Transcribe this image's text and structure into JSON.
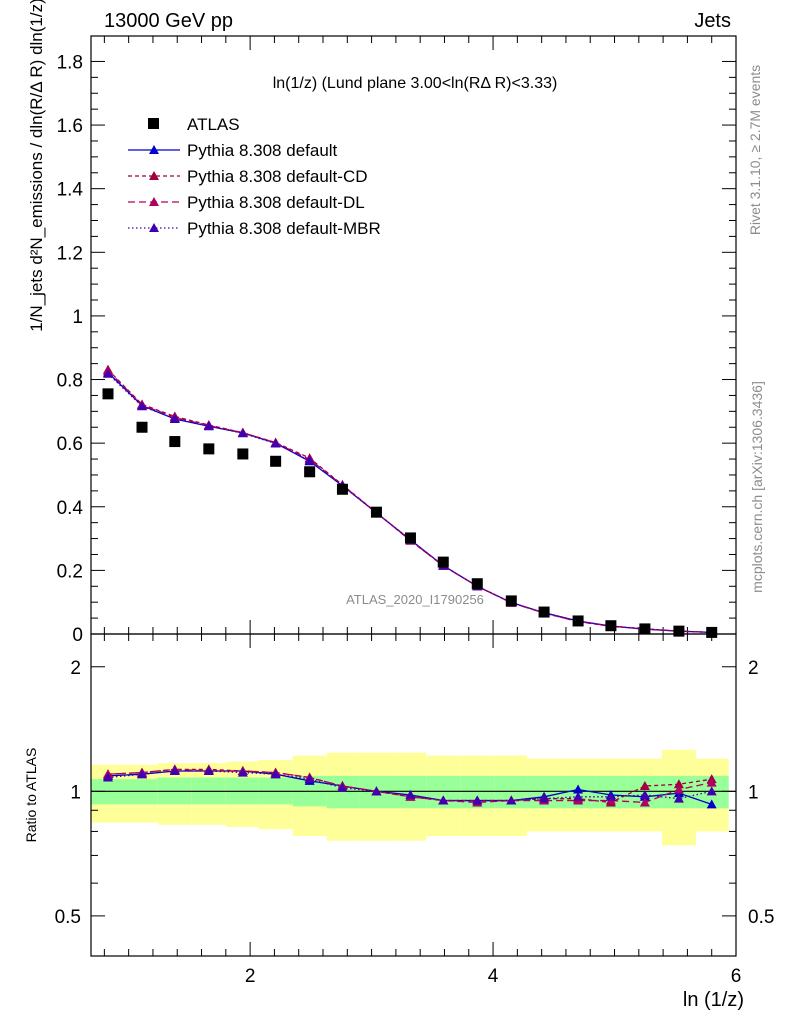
{
  "header": {
    "left": "13000 GeV pp",
    "right": "Jets"
  },
  "side_labels": {
    "rivet": "Rivet 3.1.10, ≥ 2.7M events",
    "mcplots": "mcplots.cern.ch [arXiv:1306.3436]"
  },
  "watermark": "ATLAS_2020_I1790256",
  "colors": {
    "data": "#000000",
    "default": "#0000cc",
    "cd": "#a00040",
    "dl": "#b00060",
    "mbr": "#4000b0",
    "band_inner": "#99ff99",
    "band_outer": "#ffff99"
  },
  "chart_data": [
    {
      "type": "scatter",
      "panel": "main",
      "title": "ln(1/z) (Lund plane 3.00<ln(RΔ R)<3.33)",
      "ylabel": "1/N_jets d²N_emissions / dln(R/Δ R) dln(1/z)",
      "xlabel": "",
      "xlim": [
        0.69,
        6.0
      ],
      "ylim": [
        0.0,
        1.88
      ],
      "x": [
        0.83,
        1.11,
        1.38,
        1.66,
        1.94,
        2.21,
        2.49,
        2.76,
        3.04,
        3.32,
        3.59,
        3.87,
        4.15,
        4.42,
        4.7,
        4.97,
        5.25,
        5.53,
        5.8
      ],
      "legend": [
        "ATLAS",
        "Pythia 8.308 default",
        "Pythia 8.308 default-CD",
        "Pythia 8.308 default-DL",
        "Pythia 8.308 default-MBR"
      ],
      "series": [
        {
          "name": "ATLAS",
          "style": "markers",
          "values": [
            0.755,
            0.65,
            0.605,
            0.582,
            0.566,
            0.543,
            0.51,
            0.455,
            0.383,
            0.302,
            0.226,
            0.158,
            0.104,
            0.069,
            0.041,
            0.026,
            0.016,
            0.009,
            0.005
          ]
        },
        {
          "name": "Pythia 8.308 default",
          "style": "solid",
          "values": [
            0.822,
            0.718,
            0.676,
            0.653,
            0.632,
            0.6,
            0.543,
            0.466,
            0.381,
            0.296,
            0.215,
            0.15,
            0.099,
            0.067,
            0.041,
            0.025,
            0.015,
            0.009,
            0.005
          ]
        },
        {
          "name": "Pythia 8.308 default-CD",
          "style": "dashed",
          "values": [
            0.831,
            0.722,
            0.684,
            0.657,
            0.633,
            0.602,
            0.553,
            0.469,
            0.382,
            0.293,
            0.215,
            0.15,
            0.099,
            0.066,
            0.039,
            0.024,
            0.016,
            0.009,
            0.005
          ]
        },
        {
          "name": "Pythia 8.308 default-DL",
          "style": "dashed",
          "values": [
            0.828,
            0.72,
            0.681,
            0.655,
            0.633,
            0.601,
            0.549,
            0.468,
            0.381,
            0.294,
            0.214,
            0.15,
            0.098,
            0.066,
            0.039,
            0.025,
            0.016,
            0.009,
            0.005
          ]
        },
        {
          "name": "Pythia 8.308 default-MBR",
          "style": "dotted",
          "values": [
            0.818,
            0.716,
            0.677,
            0.654,
            0.631,
            0.599,
            0.545,
            0.466,
            0.381,
            0.296,
            0.215,
            0.15,
            0.099,
            0.066,
            0.04,
            0.025,
            0.016,
            0.009,
            0.005
          ]
        }
      ],
      "yticks": [
        0,
        0.2,
        0.4,
        0.6,
        0.8,
        1,
        1.2,
        1.4,
        1.6,
        1.8
      ]
    },
    {
      "type": "line",
      "panel": "ratio",
      "ylabel": "Ratio to ATLAS",
      "xlabel": "ln (1/z)",
      "scale": "log",
      "xlim": [
        0.69,
        6.0
      ],
      "ylim": [
        0.4,
        2.4
      ],
      "x": [
        0.83,
        1.11,
        1.38,
        1.66,
        1.94,
        2.21,
        2.49,
        2.76,
        3.04,
        3.32,
        3.59,
        3.87,
        4.15,
        4.42,
        4.7,
        4.97,
        5.25,
        5.53,
        5.8
      ],
      "bin_edges": [
        0.69,
        0.97,
        1.24,
        1.52,
        1.8,
        2.07,
        2.35,
        2.63,
        2.9,
        3.18,
        3.45,
        3.73,
        4.01,
        4.28,
        4.56,
        4.84,
        5.11,
        5.39,
        5.67,
        5.94
      ],
      "band_inner": {
        "low": [
          0.93,
          0.93,
          0.93,
          0.93,
          0.93,
          0.93,
          0.92,
          0.91,
          0.91,
          0.91,
          0.91,
          0.91,
          0.91,
          0.91,
          0.91,
          0.91,
          0.91,
          0.91,
          0.91
        ],
        "high": [
          1.07,
          1.07,
          1.08,
          1.08,
          1.08,
          1.08,
          1.09,
          1.09,
          1.09,
          1.09,
          1.09,
          1.09,
          1.09,
          1.09,
          1.09,
          1.09,
          1.09,
          1.09,
          1.09
        ]
      },
      "band_outer": {
        "low": [
          0.84,
          0.84,
          0.83,
          0.83,
          0.82,
          0.81,
          0.78,
          0.76,
          0.76,
          0.76,
          0.78,
          0.78,
          0.78,
          0.8,
          0.8,
          0.8,
          0.8,
          0.74,
          0.8
        ],
        "high": [
          1.16,
          1.16,
          1.17,
          1.17,
          1.18,
          1.19,
          1.22,
          1.24,
          1.24,
          1.24,
          1.22,
          1.22,
          1.22,
          1.2,
          1.2,
          1.2,
          1.2,
          1.26,
          1.2
        ]
      },
      "series": [
        {
          "name": "Pythia 8.308 default",
          "style": "solid",
          "values": [
            1.09,
            1.1,
            1.12,
            1.12,
            1.12,
            1.1,
            1.06,
            1.03,
            1.0,
            0.98,
            0.95,
            0.95,
            0.95,
            0.97,
            1.01,
            0.98,
            0.97,
            0.99,
            0.93
          ]
        },
        {
          "name": "Pythia 8.308 default-CD",
          "style": "dashed",
          "values": [
            1.1,
            1.11,
            1.13,
            1.13,
            1.12,
            1.11,
            1.08,
            1.03,
            1.0,
            0.97,
            0.95,
            0.95,
            0.95,
            0.96,
            0.96,
            0.94,
            1.03,
            1.04,
            1.07
          ]
        },
        {
          "name": "Pythia 8.308 default-DL",
          "style": "dashed",
          "values": [
            1.1,
            1.11,
            1.13,
            1.12,
            1.12,
            1.11,
            1.08,
            1.03,
            1.0,
            0.97,
            0.95,
            0.94,
            0.95,
            0.95,
            0.95,
            0.95,
            0.94,
            1.01,
            1.05
          ]
        },
        {
          "name": "Pythia 8.308 default-MBR",
          "style": "dotted",
          "values": [
            1.08,
            1.1,
            1.12,
            1.12,
            1.11,
            1.1,
            1.07,
            1.02,
            1.0,
            0.98,
            0.95,
            0.95,
            0.95,
            0.96,
            0.97,
            0.97,
            0.98,
            0.96,
            1.0
          ]
        }
      ],
      "yticks": [
        0.5,
        1,
        2
      ],
      "xticks": [
        2,
        4,
        6
      ]
    }
  ]
}
